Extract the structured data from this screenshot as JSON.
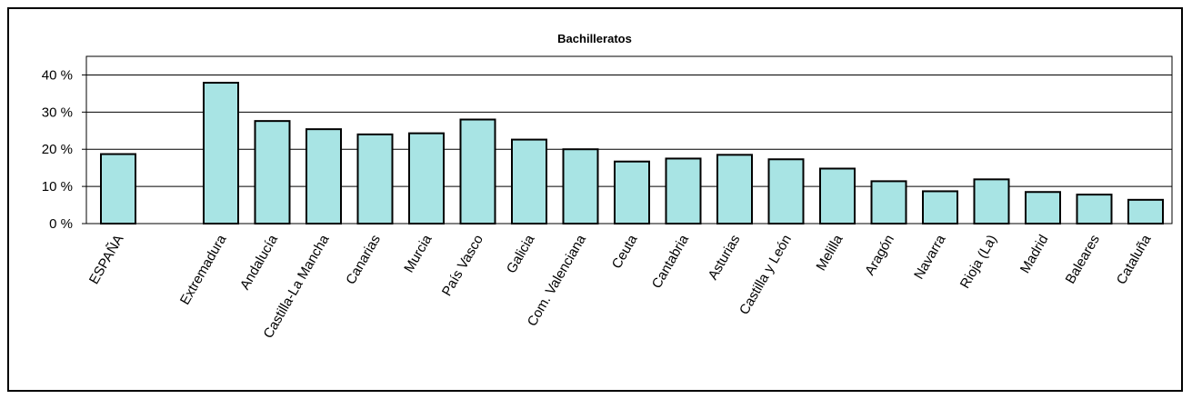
{
  "chart_data": {
    "type": "bar",
    "title": "Bachilleratos",
    "xlabel": "",
    "ylabel": "",
    "ylim": [
      0,
      45
    ],
    "yticks": [
      "0 %",
      "10 %",
      "20 %",
      "30 %",
      "40 %"
    ],
    "ytick_values": [
      0,
      10,
      20,
      30,
      40
    ],
    "grid": true,
    "bar_color": "#a8e4e4",
    "bar_stroke": "#000000",
    "categories": [
      "ESPAÑA",
      "Extremadura",
      "Andalucía",
      "Castilla-La Mancha",
      "Canarias",
      "Murcia",
      "País Vasco",
      "Galicia",
      "Com. Valenciana",
      "Ceuta",
      "Cantabria",
      "Asturias",
      "Castilla y León",
      "Melilla",
      "Aragón",
      "Navarra",
      "Rioja (La)",
      "Madrid",
      "Baleares",
      "Cataluña"
    ],
    "values": [
      18.7,
      37.9,
      27.6,
      25.4,
      24.0,
      24.3,
      28.0,
      22.6,
      20.0,
      16.7,
      17.5,
      18.5,
      17.3,
      14.8,
      11.4,
      8.7,
      11.9,
      8.5,
      7.8,
      6.4
    ]
  }
}
